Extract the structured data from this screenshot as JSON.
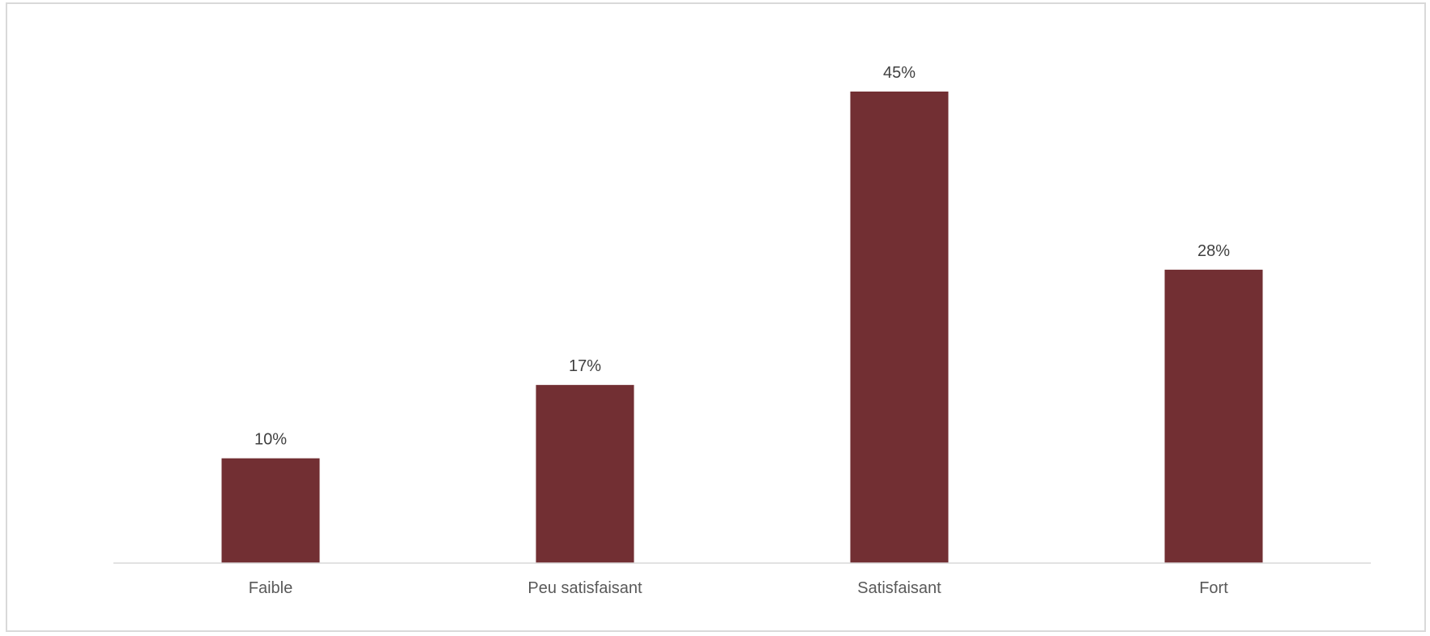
{
  "chart_data": {
    "type": "bar",
    "title": "",
    "xlabel": "",
    "ylabel": "",
    "categories": [
      "Faible",
      "Peu satisfaisant",
      "Satisfaisant",
      "Fort"
    ],
    "values": [
      10,
      17,
      45,
      28
    ],
    "data_labels": [
      "10%",
      "17%",
      "45%",
      "28%"
    ],
    "ylim": [
      0,
      45
    ],
    "grid": false,
    "legend": "none",
    "colors": {
      "bar": "#722F33",
      "axis": "#d9d9d9",
      "frame": "#d9d9d9"
    }
  }
}
